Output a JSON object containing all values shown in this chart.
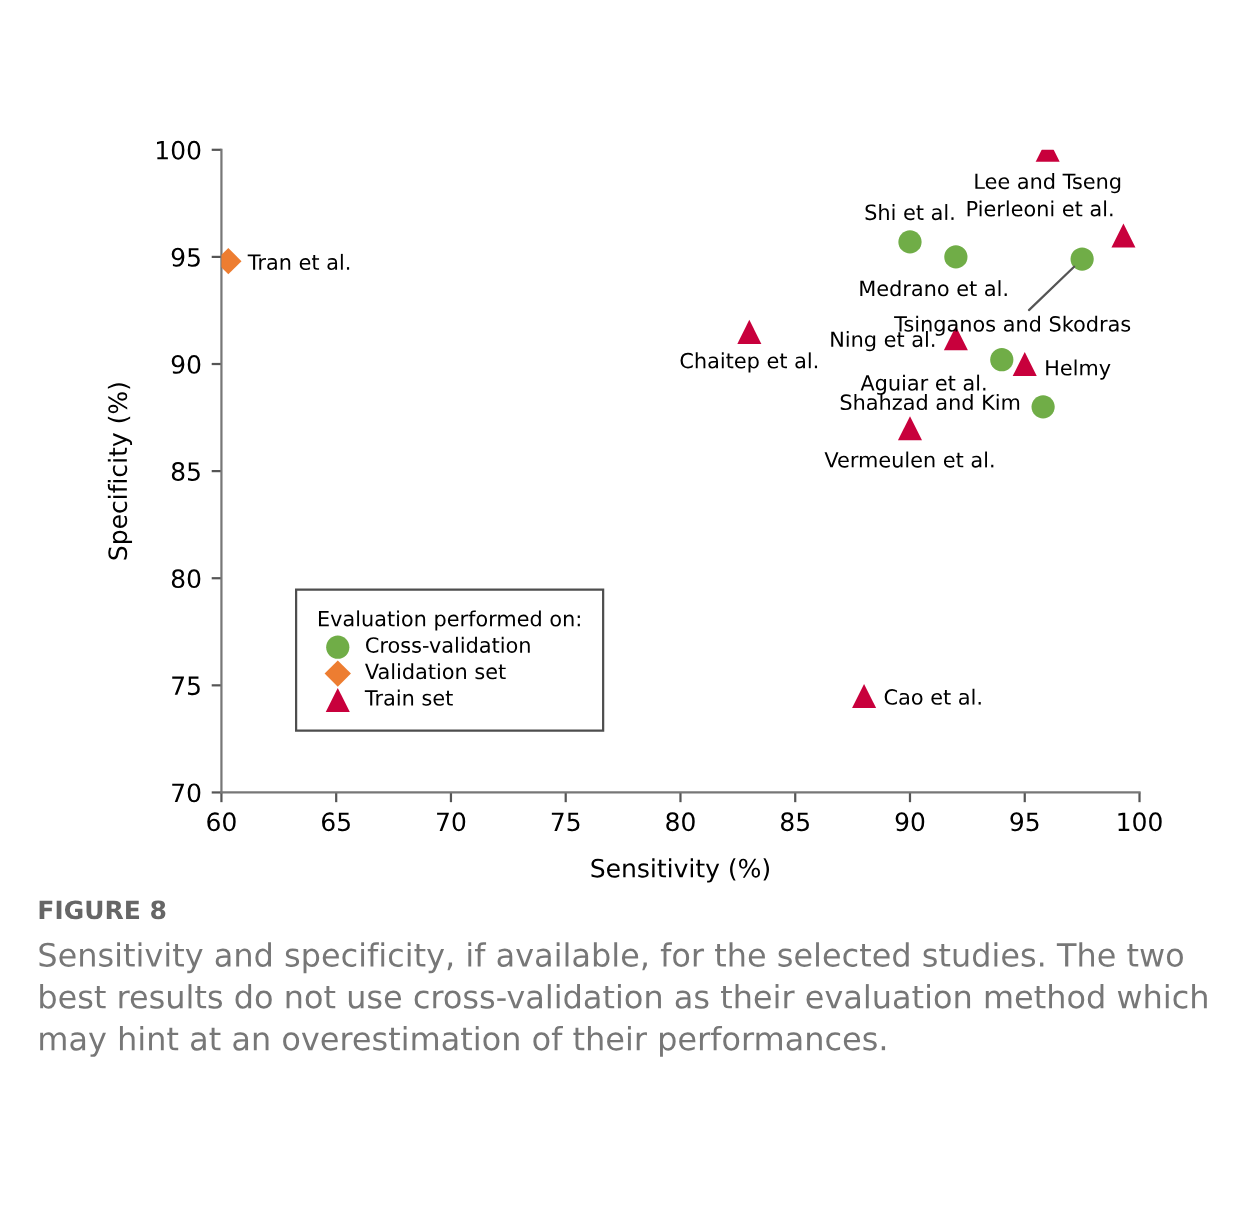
{
  "chart_data": {
    "type": "scatter",
    "xlabel": "Sensitivity (%)",
    "ylabel": "Specificity (%)",
    "legend_title": "Evaluation performed on:",
    "series": [
      {
        "name": "Cross-validation",
        "color": "#70ad47",
        "marker": "circle",
        "x": [
          90,
          92,
          97.5,
          94,
          95.8
        ],
        "values": [
          95.7,
          95.0,
          94.9,
          90.2,
          88.0
        ]
      },
      {
        "name": "Validation set",
        "color": "#ed7d31",
        "marker": "diamond",
        "x": [
          60.3
        ],
        "values": [
          94.8
        ]
      },
      {
        "name": "Train set",
        "color": "#c8003c",
        "marker": "triangle",
        "x": [
          96,
          99.3,
          83,
          92,
          95,
          90,
          88
        ],
        "values": [
          100,
          96.0,
          91.5,
          91.2,
          90.0,
          87.0,
          74.5
        ]
      }
    ],
    "annotations": [
      {
        "text": "Shi et al.",
        "x": 90,
        "y": 95.7
      },
      {
        "text": "Medrano et al.",
        "x": 92,
        "y": 95.0
      },
      {
        "text": "Tsinganos and Skodras",
        "x": 97.5,
        "y": 94.9
      },
      {
        "text": "Aguiar et al.",
        "x": 94,
        "y": 90.2
      },
      {
        "text": "Shahzad and Kim",
        "x": 95.8,
        "y": 88.0
      },
      {
        "text": "Tran et al.",
        "x": 60.3,
        "y": 94.8
      },
      {
        "text": "Lee and Tseng",
        "x": 96,
        "y": 100
      },
      {
        "text": "Pierleoni et al.",
        "x": 99.3,
        "y": 96.0
      },
      {
        "text": "Chaitep et al.",
        "x": 83,
        "y": 91.5
      },
      {
        "text": "Ning et al.",
        "x": 92,
        "y": 91.2
      },
      {
        "text": "Helmy",
        "x": 95,
        "y": 90.0
      },
      {
        "text": "Vermeulen et al.",
        "x": 90,
        "y": 87.0
      },
      {
        "text": "Cao et al.",
        "x": 88,
        "y": 74.5
      },
      "FIGURE 8",
      "Sensitivity and specificity, if available, for the selected studies. The two best results do not use cross-validation as their evaluation method which may hint at an overestimation of their performances."
    ],
    "xlim": [
      60,
      100
    ],
    "xticks": [
      60,
      65,
      70,
      75,
      80,
      85,
      90,
      95,
      100
    ],
    "ylim": [
      70,
      100
    ],
    "yticks": [
      70,
      75,
      80,
      85,
      90,
      95,
      100
    ],
    "grid": false,
    "legend": "lower left"
  }
}
